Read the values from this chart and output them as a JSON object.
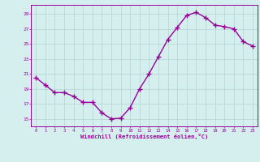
{
  "x": [
    0,
    1,
    2,
    3,
    4,
    5,
    6,
    7,
    8,
    9,
    10,
    11,
    12,
    13,
    14,
    15,
    16,
    17,
    18,
    19,
    20,
    21,
    22,
    23
  ],
  "y": [
    20.5,
    19.5,
    18.5,
    18.5,
    18.0,
    17.2,
    17.2,
    15.8,
    15.0,
    15.1,
    16.5,
    19.0,
    21.0,
    23.3,
    25.6,
    27.2,
    28.8,
    29.2,
    28.5,
    27.5,
    27.3,
    27.0,
    25.3,
    24.7
  ],
  "xlim": [
    -0.5,
    23.5
  ],
  "ylim": [
    14.0,
    30.2
  ],
  "yticks": [
    15,
    17,
    19,
    21,
    23,
    25,
    27,
    29
  ],
  "xticks": [
    0,
    1,
    2,
    3,
    4,
    5,
    6,
    7,
    8,
    9,
    10,
    11,
    12,
    13,
    14,
    15,
    16,
    17,
    18,
    19,
    20,
    21,
    22,
    23
  ],
  "xlabel": "Windchill (Refroidissement éolien,°C)",
  "line_color": "#990099",
  "marker": "+",
  "bg_color": "#d5efef",
  "grid_color": "#b8d8d8",
  "tick_color": "#990099",
  "label_color": "#990099",
  "spine_color": "#990099",
  "marker_size": 4,
  "linewidth": 1.0
}
